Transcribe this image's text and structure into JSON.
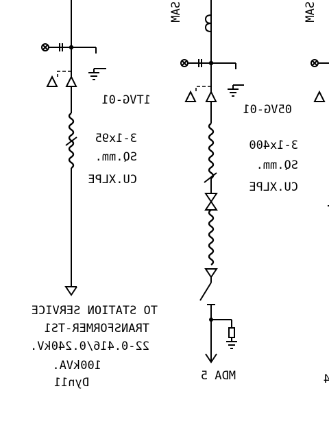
{
  "diagram": {
    "feeder_left": {
      "ct_label": "1TVG-01",
      "cable_lines": [
        "3-1x95",
        "SQ.mm.",
        "CU.XLPE"
      ],
      "load_lines": [
        "TO STATION SERVICE",
        "TRANSFORMER-TS1",
        "22-0.416/0.240kV.",
        "100kVA.",
        "Dyn11"
      ]
    },
    "feeder_mid": {
      "top_label": "SAM",
      "ct_label": "05VG-01",
      "cable_lines": [
        "3-1x400",
        "SQ.mm.",
        "CU.XLPE"
      ],
      "load_label": "MDA 5"
    },
    "feeder_right": {
      "top_label": "SAM",
      "load_label": "4"
    }
  }
}
